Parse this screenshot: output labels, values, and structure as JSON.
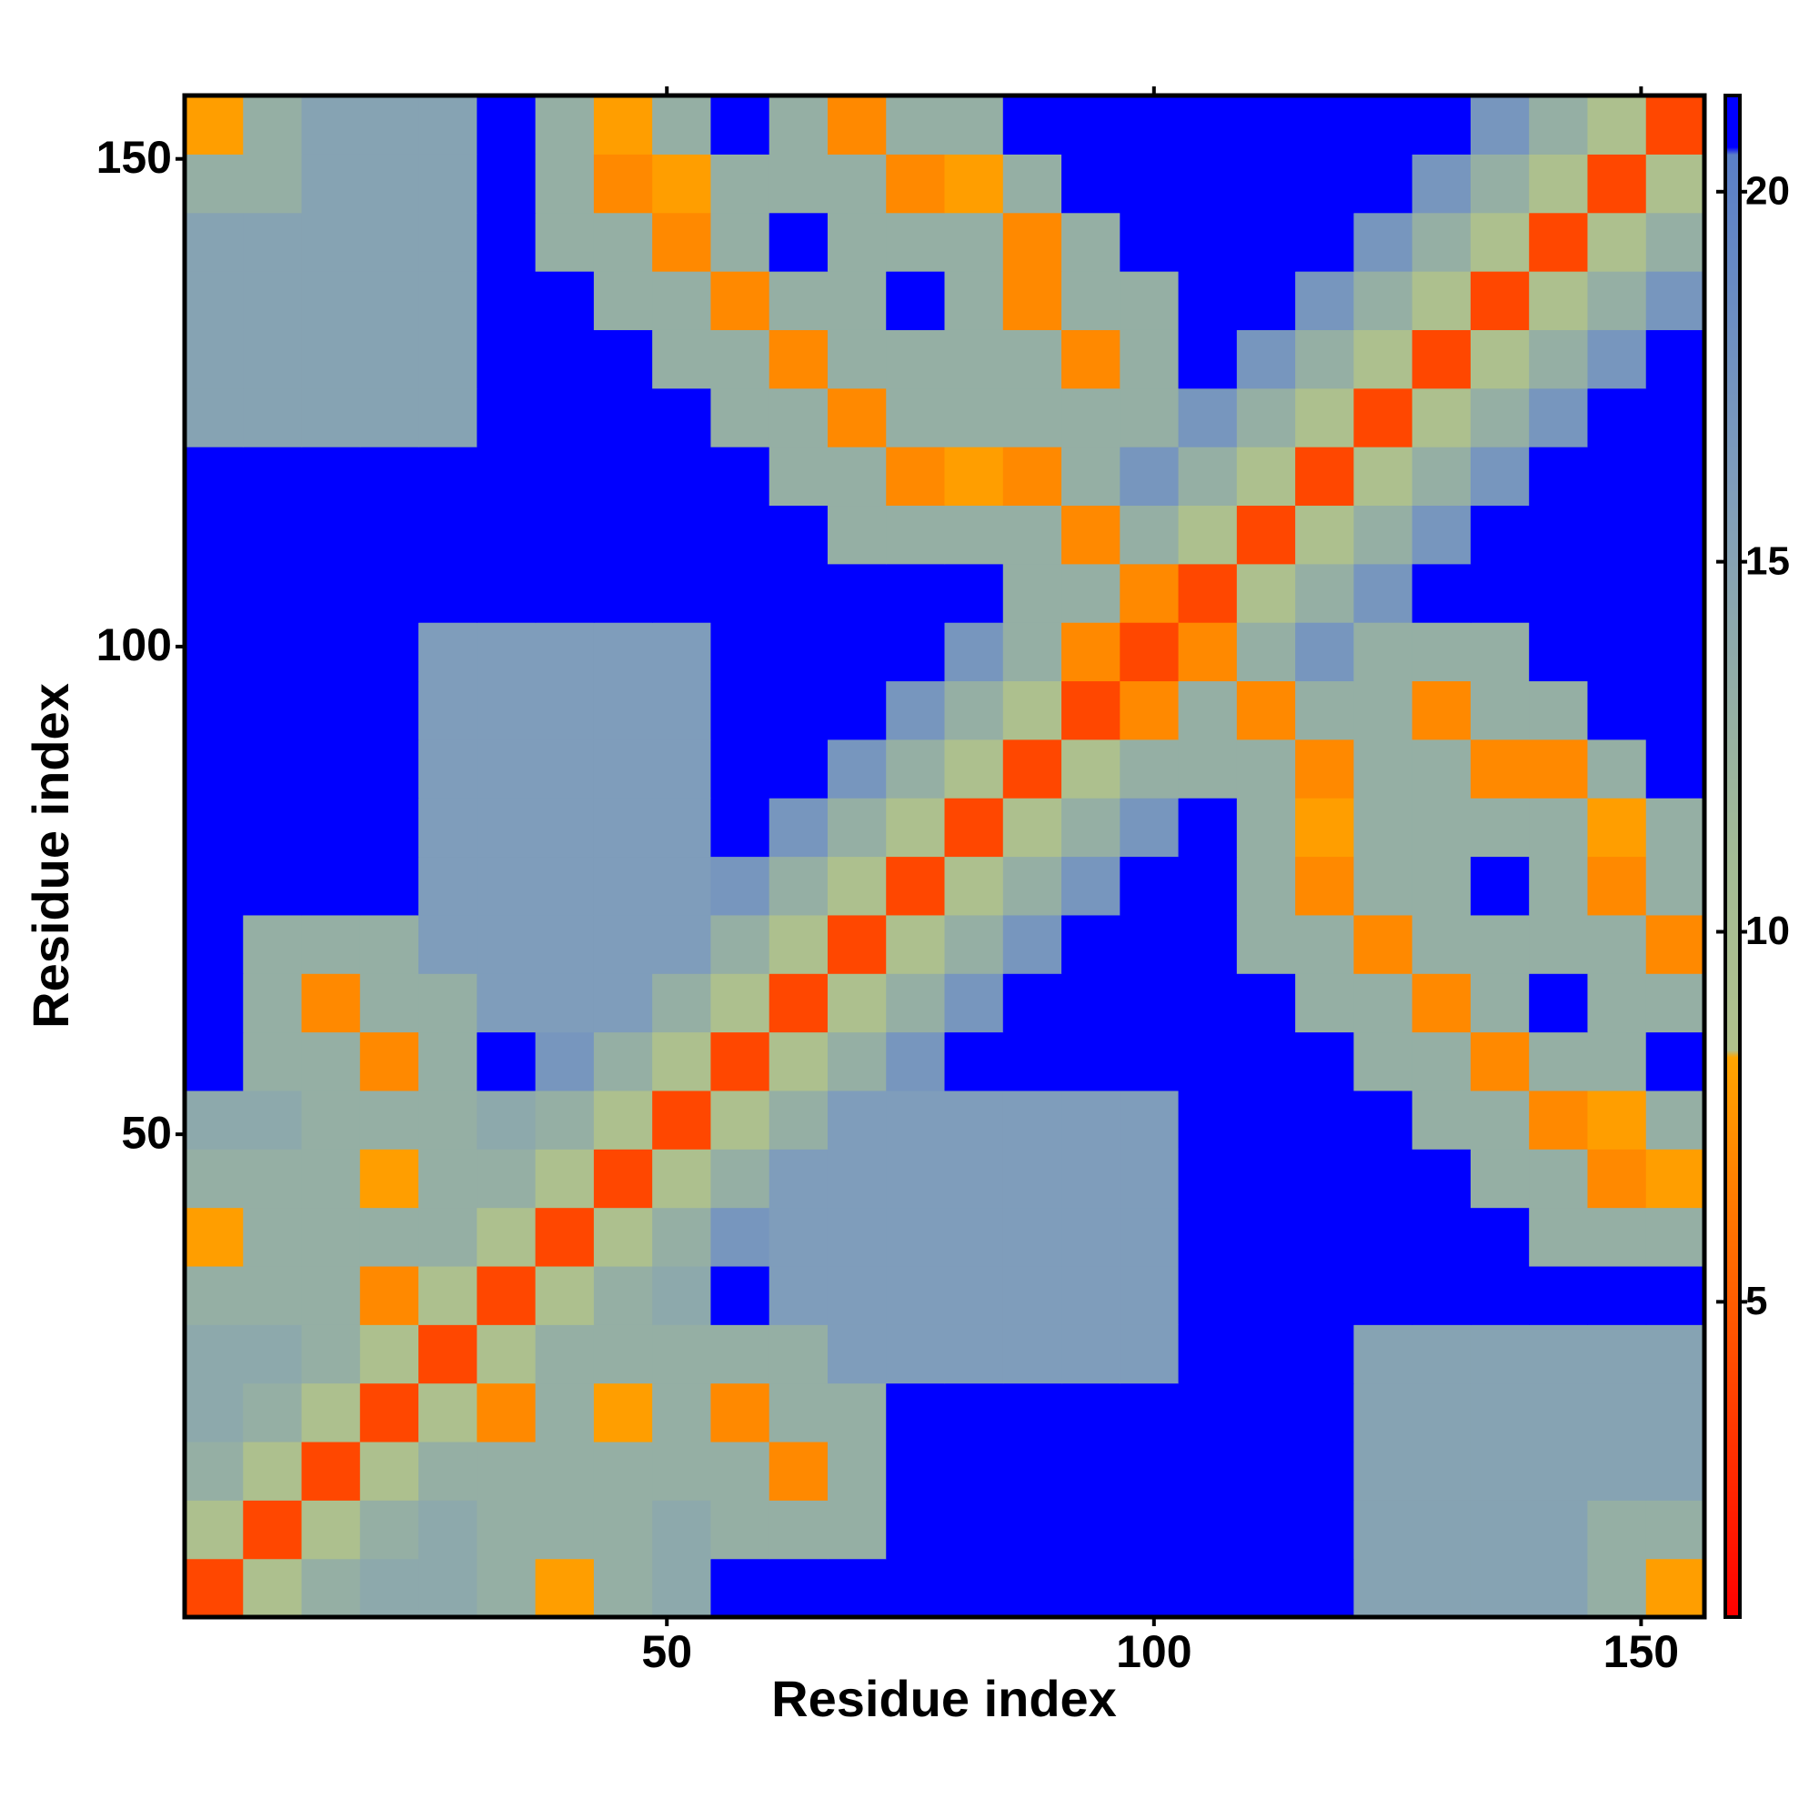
{
  "chart_data": {
    "type": "heatmap",
    "xlabel": "Residue index",
    "ylabel": "Residue index",
    "x": [
      3.5,
      9.5,
      15.5,
      21.5,
      27.5,
      33.5,
      39.5,
      45.5,
      51.5,
      57.5,
      63.5,
      69.5,
      75.5,
      81.5,
      87.5,
      93.5,
      99.5,
      105.5,
      111.5,
      117.5,
      123.5,
      129.5,
      135.5,
      141.5,
      147.5,
      153.5
    ],
    "y": [
      3.5,
      9.5,
      15.5,
      21.5,
      27.5,
      33.5,
      39.5,
      45.5,
      51.5,
      57.5,
      63.5,
      69.5,
      75.5,
      81.5,
      87.5,
      93.5,
      99.5,
      105.5,
      111.5,
      117.5,
      123.5,
      129.5,
      135.5,
      141.5,
      147.5,
      153.5
    ],
    "z": [
      [
        4,
        9,
        13,
        14,
        14,
        13,
        8,
        13,
        14,
        21,
        21,
        21,
        21,
        21,
        21,
        21,
        21,
        21,
        21,
        21,
        15,
        15,
        15,
        15,
        13,
        8
      ],
      [
        9,
        4,
        9,
        13,
        14,
        13,
        13,
        13,
        14,
        13,
        13,
        13,
        21,
        21,
        21,
        21,
        21,
        21,
        21,
        21,
        15,
        15,
        15,
        15,
        13,
        13
      ],
      [
        13,
        9,
        4,
        9,
        13,
        13,
        13,
        13,
        13,
        13,
        7,
        13,
        21,
        21,
        21,
        21,
        21,
        21,
        21,
        21,
        15,
        15,
        15,
        15,
        15,
        15
      ],
      [
        14,
        13,
        9,
        4,
        9,
        7,
        13,
        8,
        13,
        7,
        13,
        13,
        21,
        21,
        21,
        21,
        21,
        21,
        21,
        21,
        15,
        15,
        15,
        15,
        15,
        15
      ],
      [
        14,
        14,
        13,
        9,
        4,
        9,
        13,
        13,
        13,
        13,
        13,
        16,
        16,
        16,
        16,
        16,
        16,
        21,
        21,
        21,
        15,
        15,
        15,
        15,
        15,
        15
      ],
      [
        13,
        13,
        13,
        7,
        9,
        4,
        9,
        13,
        14,
        21,
        16,
        16,
        16,
        16,
        16,
        16,
        16,
        21,
        21,
        21,
        21,
        21,
        21,
        21,
        21,
        21
      ],
      [
        8,
        13,
        13,
        13,
        13,
        9,
        4,
        9,
        13,
        17,
        16,
        16,
        16,
        16,
        16,
        16,
        16,
        21,
        21,
        21,
        21,
        21,
        21,
        13,
        13,
        13
      ],
      [
        13,
        13,
        13,
        8,
        13,
        13,
        9,
        4,
        9,
        13,
        16,
        16,
        16,
        16,
        16,
        16,
        16,
        21,
        21,
        21,
        21,
        21,
        13,
        13,
        7,
        8
      ],
      [
        14,
        14,
        13,
        13,
        13,
        14,
        13,
        9,
        4,
        9,
        13,
        16,
        16,
        16,
        16,
        16,
        16,
        21,
        21,
        21,
        21,
        13,
        13,
        7,
        8,
        13
      ],
      [
        21,
        13,
        13,
        7,
        13,
        21,
        17,
        13,
        9,
        4,
        9,
        13,
        17,
        21,
        21,
        21,
        21,
        21,
        21,
        21,
        13,
        13,
        7,
        13,
        13,
        21
      ],
      [
        21,
        13,
        7,
        13,
        13,
        16,
        16,
        16,
        13,
        9,
        4,
        9,
        13,
        17,
        21,
        21,
        21,
        21,
        21,
        13,
        13,
        7,
        13,
        21,
        13,
        13
      ],
      [
        21,
        13,
        13,
        13,
        16,
        16,
        16,
        16,
        16,
        13,
        9,
        4,
        9,
        13,
        17,
        21,
        21,
        21,
        13,
        13,
        7,
        13,
        13,
        13,
        13,
        7
      ],
      [
        21,
        21,
        21,
        21,
        16,
        16,
        16,
        16,
        16,
        17,
        13,
        9,
        4,
        9,
        13,
        17,
        21,
        21,
        13,
        7,
        13,
        13,
        21,
        13,
        7,
        13
      ],
      [
        21,
        21,
        21,
        21,
        16,
        16,
        16,
        16,
        16,
        21,
        17,
        13,
        9,
        4,
        9,
        13,
        17,
        21,
        13,
        8,
        13,
        13,
        13,
        13,
        8,
        13
      ],
      [
        21,
        21,
        21,
        21,
        16,
        16,
        16,
        16,
        16,
        21,
        21,
        17,
        13,
        9,
        4,
        9,
        13,
        13,
        13,
        7,
        13,
        13,
        7,
        7,
        13,
        21
      ],
      [
        21,
        21,
        21,
        21,
        16,
        16,
        16,
        16,
        16,
        21,
        21,
        21,
        17,
        13,
        9,
        4,
        7,
        13,
        7,
        13,
        13,
        7,
        13,
        13,
        21,
        21
      ],
      [
        21,
        21,
        21,
        21,
        16,
        16,
        16,
        16,
        16,
        21,
        21,
        21,
        21,
        17,
        13,
        7,
        4,
        7,
        13,
        17,
        13,
        13,
        13,
        21,
        21,
        21
      ],
      [
        21,
        21,
        21,
        21,
        21,
        21,
        21,
        21,
        21,
        21,
        21,
        21,
        21,
        21,
        13,
        13,
        7,
        4,
        9,
        13,
        17,
        21,
        21,
        21,
        21,
        21
      ],
      [
        21,
        21,
        21,
        21,
        21,
        21,
        21,
        21,
        21,
        21,
        21,
        13,
        13,
        13,
        13,
        7,
        13,
        9,
        4,
        9,
        13,
        17,
        21,
        21,
        21,
        21
      ],
      [
        21,
        21,
        21,
        21,
        21,
        21,
        21,
        21,
        21,
        21,
        13,
        13,
        7,
        8,
        7,
        13,
        17,
        13,
        9,
        4,
        9,
        13,
        17,
        21,
        21,
        21
      ],
      [
        15,
        15,
        15,
        15,
        15,
        21,
        21,
        21,
        21,
        13,
        13,
        7,
        13,
        13,
        13,
        13,
        13,
        17,
        13,
        9,
        4,
        9,
        13,
        17,
        21,
        21
      ],
      [
        15,
        15,
        15,
        15,
        15,
        21,
        21,
        21,
        13,
        13,
        7,
        13,
        13,
        13,
        13,
        7,
        13,
        21,
        17,
        13,
        9,
        4,
        9,
        13,
        17,
        21
      ],
      [
        15,
        15,
        15,
        15,
        15,
        21,
        21,
        13,
        13,
        7,
        13,
        13,
        21,
        13,
        7,
        13,
        13,
        21,
        21,
        17,
        13,
        9,
        4,
        9,
        13,
        17
      ],
      [
        15,
        15,
        15,
        15,
        15,
        21,
        13,
        13,
        7,
        13,
        21,
        13,
        13,
        13,
        7,
        13,
        21,
        21,
        21,
        21,
        17,
        13,
        9,
        4,
        9,
        13
      ],
      [
        13,
        13,
        15,
        15,
        15,
        21,
        13,
        7,
        8,
        13,
        13,
        13,
        7,
        8,
        13,
        21,
        21,
        21,
        21,
        21,
        21,
        17,
        13,
        9,
        4,
        9
      ],
      [
        8,
        13,
        15,
        15,
        15,
        21,
        13,
        8,
        13,
        21,
        13,
        7,
        13,
        13,
        21,
        21,
        21,
        21,
        21,
        21,
        21,
        21,
        17,
        13,
        9,
        4
      ]
    ],
    "xlim": [
      0.5,
      156.5
    ],
    "ylim": [
      0.5,
      156.5
    ],
    "xticks": [
      50,
      100,
      150
    ],
    "yticks": [
      50,
      100,
      150
    ],
    "zlim": [
      0.74,
      21.3
    ],
    "zticks": [
      5,
      10,
      15,
      20
    ],
    "colorscale": [
      [
        0.74,
        "#ff0000"
      ],
      [
        8.3,
        "#ffa500"
      ],
      [
        8.4,
        "#b0c18c"
      ],
      [
        11,
        "#a3bb95"
      ],
      [
        16,
        "#7f9dbb"
      ],
      [
        20.5,
        "#5a7fc8"
      ],
      [
        20.6,
        "#0000ff"
      ],
      [
        21.3,
        "#0000ff"
      ]
    ]
  }
}
